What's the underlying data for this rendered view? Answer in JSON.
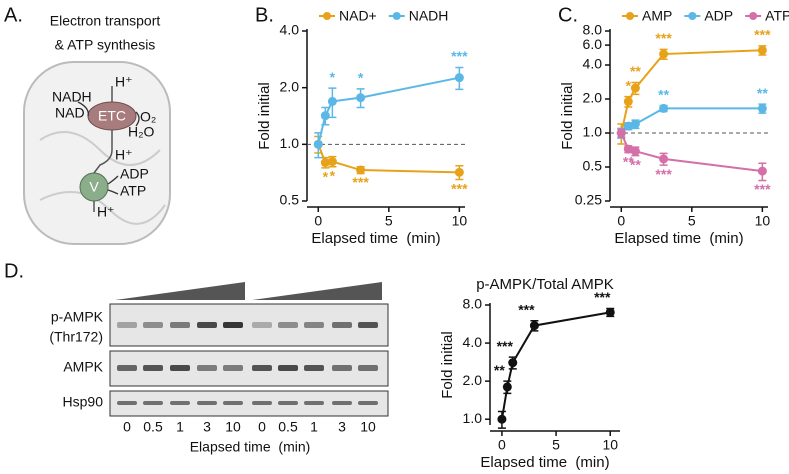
{
  "panel_a": {
    "label": "A.",
    "title_lines": [
      "Electron transport",
      "& ATP synthesis"
    ],
    "labels": {
      "nadh": "NADH",
      "nad": "NAD",
      "etc": "ETC",
      "o2": "O₂",
      "h2o": "H₂O",
      "v": "V",
      "adp": "ADP",
      "atp": "ATP",
      "h_plus": "H⁺"
    }
  },
  "panel_d_blot": {
    "label": "D.",
    "row_labels": [
      "p-AMPK",
      "(Thr172)",
      "AMPK",
      "Hsp90"
    ],
    "lanes": [
      "0",
      "0.5",
      "1",
      "3",
      "10",
      "0",
      "0.5",
      "1",
      "3",
      "10"
    ],
    "xlabel": "Elapsed time  (min)"
  },
  "chart_data": [
    {
      "type": "line",
      "label": "B.",
      "x": [
        0,
        0.5,
        1,
        3,
        10
      ],
      "xlim": [
        -0.8,
        10.4
      ],
      "xticks": [
        0,
        5,
        10
      ],
      "ylim": [
        0.5,
        4.0
      ],
      "yticks": [
        0.5,
        {
          "value": 1,
          "label": "1.0"
        },
        {
          "value": 2,
          "label": "2.0"
        },
        {
          "value": 4,
          "label": "4.0"
        }
      ],
      "yscale": "log",
      "xlabel": "Elapsed time  (min)",
      "ylabel": "Fold initial",
      "reference_line": 1,
      "legend": "top",
      "series": [
        {
          "name": "NAD+",
          "color": "#E8A21A",
          "values": [
            1.0,
            0.8,
            0.81,
            0.73,
            0.71
          ],
          "errors": [
            0.1,
            0.05,
            0.05,
            0.03,
            0.06
          ],
          "annotations": [
            null,
            "*",
            "*",
            "***",
            "***"
          ]
        },
        {
          "name": "NADH",
          "color": "#5BB8E6",
          "values": [
            1.0,
            1.42,
            1.69,
            1.77,
            2.26
          ],
          "errors": [
            0.15,
            0.15,
            0.3,
            0.2,
            0.3
          ],
          "annotations": [
            null,
            null,
            "*",
            "*",
            "***"
          ]
        }
      ]
    },
    {
      "type": "line",
      "label": "C.",
      "x": [
        0,
        0.5,
        1,
        3,
        10
      ],
      "xlim": [
        -0.8,
        10.4
      ],
      "xticks": [
        0,
        5,
        10
      ],
      "ylim": [
        0.25,
        8.0
      ],
      "yticks": [
        0.25,
        0.5,
        {
          "value": 1,
          "label": "1.0"
        },
        {
          "value": 2,
          "label": "2.0"
        },
        {
          "value": 4,
          "label": "4.0"
        },
        {
          "value": 6,
          "label": "6.0"
        },
        {
          "value": 8,
          "label": "8.0"
        }
      ],
      "yscale": "log",
      "xlabel": "Elapsed time  (min)",
      "ylabel": "Fold initial",
      "reference_line": 1,
      "legend": "top",
      "series": [
        {
          "name": "AMP",
          "color": "#E8A21A",
          "values": [
            1.0,
            1.9,
            2.5,
            5.0,
            5.4
          ],
          "errors": [
            0.2,
            0.2,
            0.3,
            0.5,
            0.5
          ],
          "annotations": [
            null,
            "*",
            "**",
            "***",
            "***"
          ]
        },
        {
          "name": "ADP",
          "color": "#5BB8E6",
          "values": [
            1.0,
            1.15,
            1.2,
            1.65,
            1.65
          ],
          "errors": [
            0.1,
            0.08,
            0.1,
            0.1,
            0.15
          ],
          "annotations": [
            null,
            null,
            null,
            "**",
            "**"
          ]
        },
        {
          "name": "ATP",
          "color": "#D46FA8",
          "values": [
            1.0,
            0.72,
            0.69,
            0.59,
            0.46
          ],
          "errors": [
            0.08,
            0.05,
            0.06,
            0.07,
            0.08
          ],
          "annotations": [
            null,
            "**",
            "**",
            "***",
            "***"
          ]
        }
      ]
    },
    {
      "type": "line",
      "title": "p-AMPK/Total AMPK",
      "x": [
        0,
        0.5,
        1,
        3,
        10
      ],
      "xlim": [
        -1.1,
        10.9
      ],
      "xticks": [
        0,
        5,
        10
      ],
      "ylim": [
        0.9,
        8.0
      ],
      "yticks": [
        {
          "value": 1,
          "label": "1.0"
        },
        {
          "value": 2,
          "label": "2.0"
        },
        {
          "value": 4,
          "label": "4.0"
        },
        {
          "value": 8,
          "label": "8.0"
        }
      ],
      "yscale": "log",
      "xlabel": "Elapsed time  (min)",
      "ylabel": "Fold initial",
      "series": [
        {
          "color": "#111111",
          "values": [
            1.0,
            1.8,
            2.8,
            5.5,
            7.0
          ],
          "errors": [
            0.15,
            0.2,
            0.3,
            0.5,
            0.5
          ],
          "annotations": [
            null,
            "**",
            "***",
            "***",
            "***"
          ]
        }
      ]
    }
  ]
}
